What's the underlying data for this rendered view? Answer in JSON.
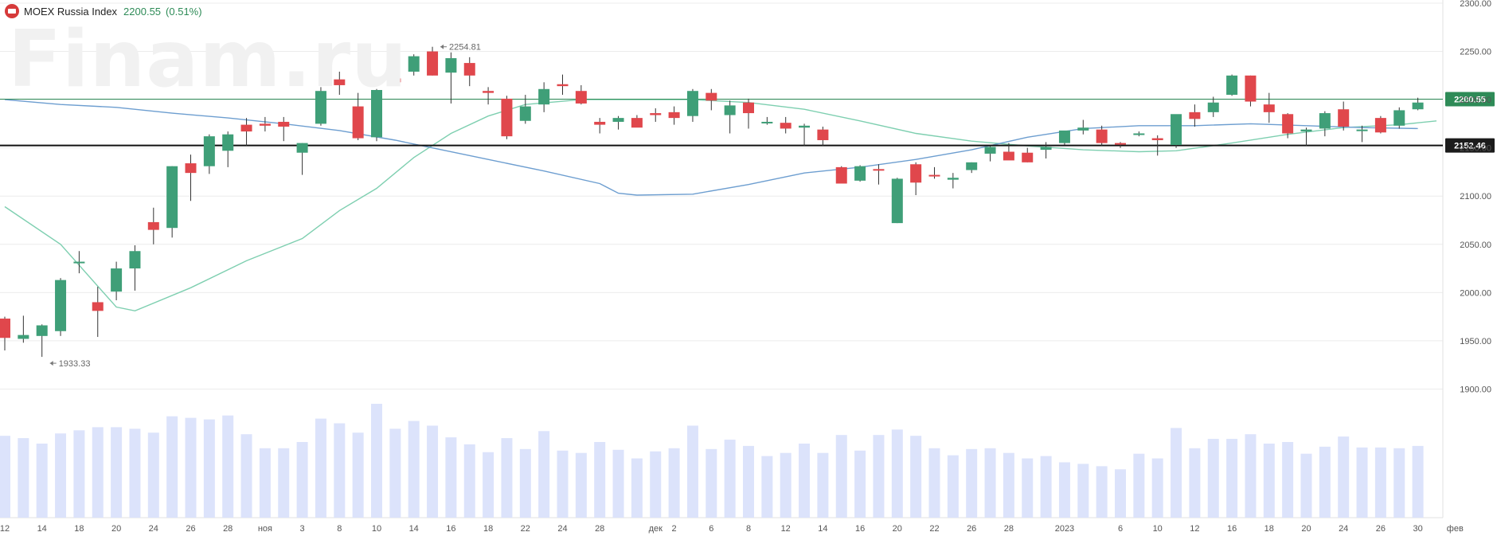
{
  "header": {
    "title": "MOEX Russia Index",
    "price": "2200.55",
    "change": "(0.51%)"
  },
  "watermark": "Finam.ru",
  "colors": {
    "up": "#3f9f78",
    "down": "#e0474c",
    "ma_fast": "#7ecfb0",
    "ma_slow": "#6d9ed0",
    "volume": "#dce3fb",
    "last_price_line": "#2e8b57",
    "support_line": "#111111"
  },
  "chart_data": {
    "type": "candlestick",
    "title": "MOEX Russia Index",
    "ylim": [
      1850,
      2300
    ],
    "y_ticks": [
      "2300.00",
      "2250.00",
      "2200.00",
      "2150.00",
      "2100.00",
      "2050.00",
      "2000.00",
      "1950.00",
      "1900.00"
    ],
    "x_tick_labels": [
      {
        "bar": 0,
        "label": "12"
      },
      {
        "bar": 2,
        "label": "14"
      },
      {
        "bar": 4,
        "label": "18"
      },
      {
        "bar": 6,
        "label": "20"
      },
      {
        "bar": 8,
        "label": "24"
      },
      {
        "bar": 10,
        "label": "26"
      },
      {
        "bar": 12,
        "label": "28"
      },
      {
        "bar": 14,
        "label": "ноя"
      },
      {
        "bar": 16,
        "label": "3"
      },
      {
        "bar": 18,
        "label": "8"
      },
      {
        "bar": 20,
        "label": "10"
      },
      {
        "bar": 22,
        "label": "14"
      },
      {
        "bar": 24,
        "label": "16"
      },
      {
        "bar": 26,
        "label": "18"
      },
      {
        "bar": 28,
        "label": "22"
      },
      {
        "bar": 30,
        "label": "24"
      },
      {
        "bar": 32,
        "label": "28"
      },
      {
        "bar": 35,
        "label": "дек"
      },
      {
        "bar": 36,
        "label": "2"
      },
      {
        "bar": 38,
        "label": "6"
      },
      {
        "bar": 40,
        "label": "8"
      },
      {
        "bar": 42,
        "label": "12"
      },
      {
        "bar": 44,
        "label": "14"
      },
      {
        "bar": 46,
        "label": "16"
      },
      {
        "bar": 48,
        "label": "20"
      },
      {
        "bar": 50,
        "label": "22"
      },
      {
        "bar": 52,
        "label": "26"
      },
      {
        "bar": 54,
        "label": "28"
      },
      {
        "bar": 57,
        "label": "2023"
      },
      {
        "bar": 60,
        "label": "6"
      },
      {
        "bar": 62,
        "label": "10"
      },
      {
        "bar": 64,
        "label": "12"
      },
      {
        "bar": 66,
        "label": "16"
      },
      {
        "bar": 68,
        "label": "18"
      },
      {
        "bar": 70,
        "label": "20"
      },
      {
        "bar": 72,
        "label": "24"
      },
      {
        "bar": 74,
        "label": "26"
      },
      {
        "bar": 76,
        "label": "30"
      },
      {
        "bar": 78,
        "label": "фев"
      }
    ],
    "candles": [
      [
        1973,
        1975,
        1940,
        1953
      ],
      [
        1952,
        1976,
        1948,
        1956
      ],
      [
        1955,
        1967,
        1933.33,
        1966
      ],
      [
        1960,
        2015,
        1955,
        2013
      ],
      [
        2032,
        2043,
        2020,
        2032
      ],
      [
        1990,
        2006,
        1954,
        1981
      ],
      [
        2001,
        2032,
        1992,
        2025
      ],
      [
        2025,
        2049,
        2002,
        2043
      ],
      [
        2073,
        2088,
        2050,
        2065
      ],
      [
        2067,
        2131,
        2057,
        2131
      ],
      [
        2134,
        2143,
        2095,
        2124
      ],
      [
        2131,
        2164,
        2123,
        2162
      ],
      [
        2147,
        2167,
        2130,
        2164
      ],
      [
        2174,
        2181,
        2152,
        2167
      ],
      [
        2175,
        2182,
        2167,
        2173
      ],
      [
        2177,
        2182,
        2157,
        2172
      ],
      [
        2145,
        2155,
        2122,
        2155
      ],
      [
        2175,
        2213,
        2173,
        2209
      ],
      [
        2221,
        2229,
        2205,
        2215
      ],
      [
        2193,
        2207,
        2158,
        2160
      ],
      [
        2161,
        2211,
        2157,
        2210
      ],
      [
        2222,
        2227,
        2217,
        2218
      ],
      [
        2229,
        2247,
        2225,
        2245
      ],
      [
        2250,
        2254.81,
        2225,
        2225
      ],
      [
        2228,
        2249,
        2196,
        2243
      ],
      [
        2238,
        2244,
        2214,
        2225
      ],
      [
        2209,
        2213,
        2195,
        2207
      ],
      [
        2201,
        2204,
        2159,
        2162
      ],
      [
        2178,
        2205,
        2175,
        2193
      ],
      [
        2195,
        2218,
        2187,
        2211
      ],
      [
        2216,
        2226,
        2205,
        2214
      ],
      [
        2209,
        2215,
        2195,
        2196
      ],
      [
        2177,
        2181,
        2165,
        2174
      ],
      [
        2177,
        2183,
        2169,
        2181
      ],
      [
        2181,
        2184,
        2172,
        2171
      ],
      [
        2186,
        2191,
        2177,
        2184
      ],
      [
        2187,
        2193,
        2174,
        2181
      ],
      [
        2183,
        2211,
        2177,
        2209
      ],
      [
        2207,
        2211,
        2189,
        2199
      ],
      [
        2184,
        2199,
        2165,
        2194
      ],
      [
        2197,
        2201,
        2170,
        2186
      ],
      [
        2177,
        2182,
        2174,
        2177
      ],
      [
        2176,
        2182,
        2165,
        2170
      ],
      [
        2171,
        2175,
        2152,
        2173
      ],
      [
        2169,
        2172,
        2152,
        2158
      ],
      [
        2130,
        2131,
        2114,
        2113
      ],
      [
        2116,
        2132,
        2115,
        2131
      ],
      [
        2128,
        2133,
        2112,
        2127
      ],
      [
        2072,
        2119,
        2072,
        2118
      ],
      [
        2133,
        2135,
        2101,
        2114
      ],
      [
        2122,
        2130,
        2118,
        2121
      ],
      [
        2117,
        2124,
        2108,
        2119
      ],
      [
        2127,
        2135,
        2124,
        2135
      ],
      [
        2144,
        2152,
        2136,
        2151
      ],
      [
        2146,
        2155,
        2138,
        2137
      ],
      [
        2145,
        2150,
        2135,
        2135
      ],
      [
        2148,
        2156,
        2139,
        2151
      ],
      [
        2155,
        2165,
        2153,
        2168
      ],
      [
        2168,
        2179,
        2164,
        2171
      ],
      [
        2169,
        2173,
        2152,
        2155
      ],
      [
        2155,
        2156,
        2150,
        2154
      ],
      [
        2165,
        2167,
        2162,
        2165
      ],
      [
        2160,
        2163,
        2142,
        2158
      ],
      [
        2153,
        2184,
        2150,
        2185
      ],
      [
        2187,
        2195,
        2172,
        2180
      ],
      [
        2187,
        2203,
        2182,
        2197
      ],
      [
        2205,
        2226,
        2204,
        2225
      ],
      [
        2225,
        2225,
        2193,
        2198
      ],
      [
        2195,
        2207,
        2176,
        2187
      ],
      [
        2185,
        2186,
        2160,
        2165
      ],
      [
        2167,
        2171,
        2152,
        2169
      ],
      [
        2170,
        2188,
        2162,
        2186
      ],
      [
        2190,
        2198,
        2168,
        2172
      ],
      [
        2169,
        2173,
        2156,
        2169
      ],
      [
        2181,
        2183,
        2165,
        2166
      ],
      [
        2173,
        2192,
        2170,
        2189
      ],
      [
        2190,
        2202,
        2189,
        2197
      ]
    ],
    "volume": [
      905,
      902,
      895,
      908,
      912,
      916,
      916,
      914,
      909,
      930,
      928,
      926,
      931,
      907,
      889,
      889,
      897,
      927,
      921,
      909,
      946,
      914,
      924,
      918,
      903,
      894,
      884,
      902,
      888,
      911,
      886,
      883,
      897,
      887,
      876,
      885,
      889,
      918,
      888,
      900,
      892,
      879,
      883,
      895,
      883,
      906,
      886,
      906,
      913,
      905,
      889,
      880,
      888,
      889,
      883,
      876,
      879,
      871,
      869,
      866,
      862,
      882,
      876,
      915,
      889,
      901,
      901,
      907,
      895,
      897,
      882,
      891,
      904,
      890,
      890,
      889,
      892
    ],
    "volume_unit": "relative",
    "ma_fast": [
      [
        0,
        2089
      ],
      [
        3,
        2050
      ],
      [
        6,
        1985
      ],
      [
        7,
        1981
      ],
      [
        10,
        2005
      ],
      [
        13,
        2033
      ],
      [
        16,
        2056
      ],
      [
        18,
        2085
      ],
      [
        20,
        2108
      ],
      [
        22,
        2140
      ],
      [
        24,
        2165
      ],
      [
        26,
        2183
      ],
      [
        28,
        2195
      ],
      [
        31,
        2200
      ],
      [
        34,
        2200
      ],
      [
        37,
        2200
      ],
      [
        40,
        2197
      ],
      [
        43,
        2190
      ],
      [
        46,
        2178
      ],
      [
        49,
        2165
      ],
      [
        52,
        2157
      ],
      [
        55,
        2152
      ],
      [
        58,
        2148
      ],
      [
        61,
        2146
      ],
      [
        63,
        2147
      ],
      [
        66,
        2155
      ],
      [
        69,
        2164
      ],
      [
        72,
        2171
      ],
      [
        75,
        2174
      ],
      [
        77,
        2178
      ]
    ],
    "ma_slow": [
      [
        0,
        2200
      ],
      [
        3,
        2195
      ],
      [
        6,
        2192
      ],
      [
        9,
        2186
      ],
      [
        12,
        2181
      ],
      [
        15,
        2175
      ],
      [
        18,
        2168
      ],
      [
        21,
        2158
      ],
      [
        23,
        2150
      ],
      [
        26,
        2138
      ],
      [
        29,
        2126
      ],
      [
        32,
        2113
      ],
      [
        33,
        2103
      ],
      [
        34,
        2101
      ],
      [
        37,
        2102
      ],
      [
        40,
        2112
      ],
      [
        43,
        2124
      ],
      [
        46,
        2130
      ],
      [
        49,
        2138
      ],
      [
        52,
        2148
      ],
      [
        55,
        2161
      ],
      [
        58,
        2170
      ],
      [
        61,
        2173
      ],
      [
        64,
        2173
      ],
      [
        67,
        2175
      ],
      [
        70,
        2173
      ],
      [
        73,
        2171
      ],
      [
        76,
        2170
      ]
    ],
    "last_price": 2200.55,
    "last_price_label": "2200.55",
    "support_level": 2152.46,
    "support_label": "2152.46",
    "annotations": [
      {
        "bar": 23,
        "value": 2254.81,
        "label": "2254.81"
      },
      {
        "bar": 2,
        "value": 1933.33,
        "label": "1933.33"
      }
    ]
  }
}
